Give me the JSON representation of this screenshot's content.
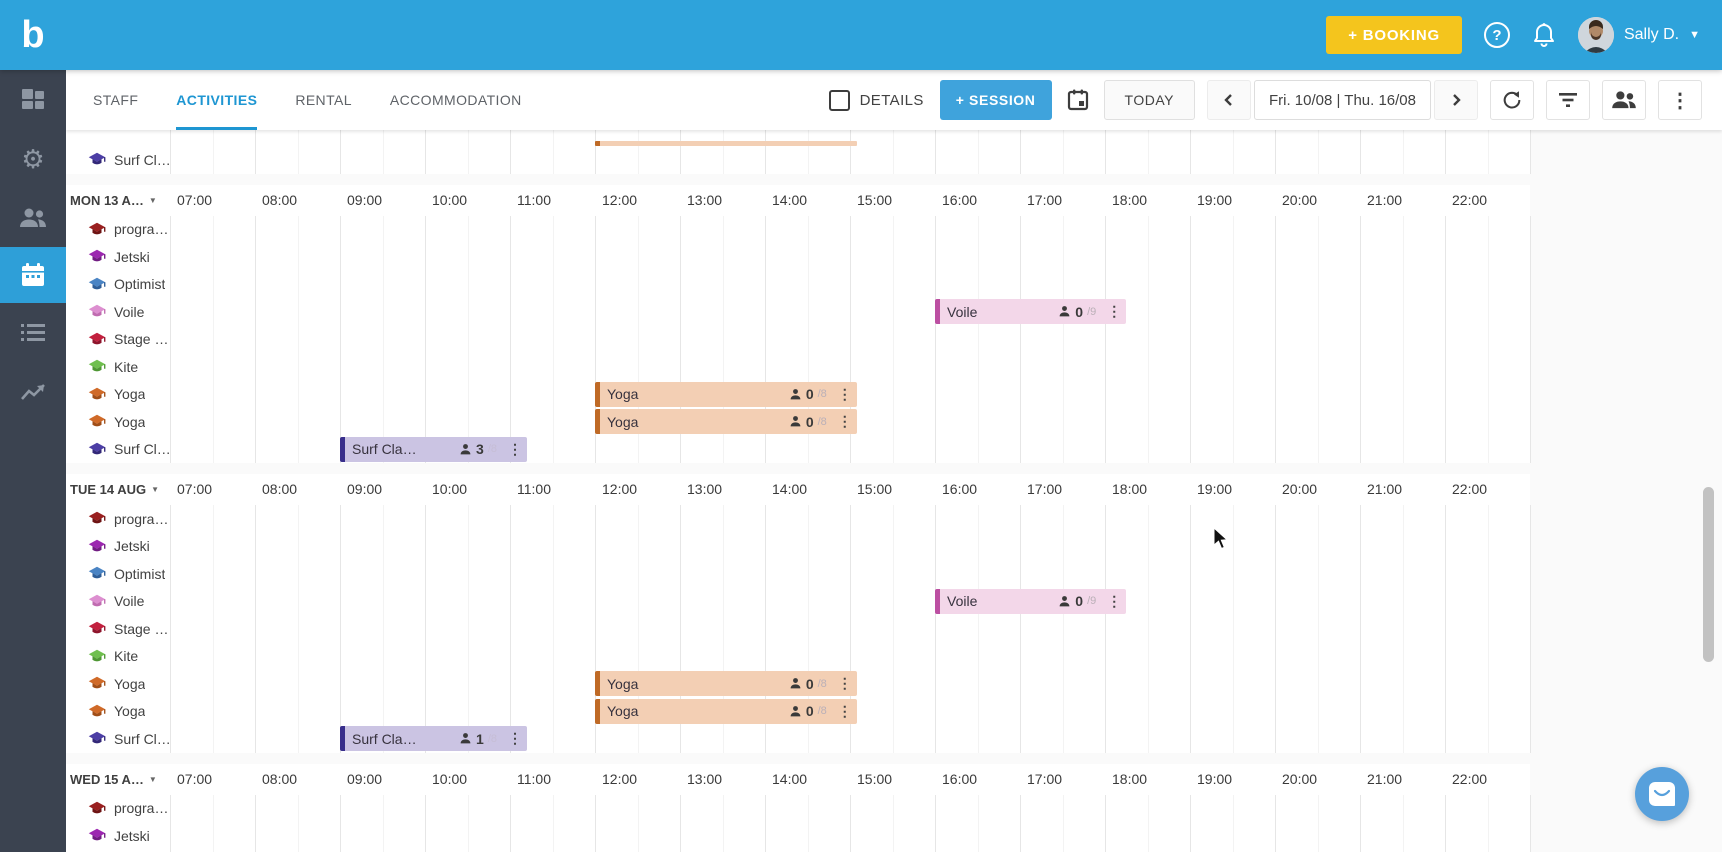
{
  "topbar": {
    "logo_text": "b",
    "booking_button": "+ BOOKING",
    "help_label": "?",
    "user_name": "Sally D."
  },
  "sidebar": {
    "items": [
      {
        "name": "dashboard",
        "active": false
      },
      {
        "name": "settings",
        "active": false
      },
      {
        "name": "customers",
        "active": false
      },
      {
        "name": "calendar",
        "active": true
      },
      {
        "name": "bookings-list",
        "active": false
      },
      {
        "name": "reports",
        "active": false
      }
    ]
  },
  "toolbar": {
    "tabs": [
      {
        "label": "STAFF",
        "active": false
      },
      {
        "label": "ACTIVITIES",
        "active": true
      },
      {
        "label": "RENTAL",
        "active": false
      },
      {
        "label": "ACCOMMODATION",
        "active": false
      }
    ],
    "details_label": "DETAILS",
    "session_button": "+ SESSION",
    "today_button": "TODAY",
    "date_range": "Fri. 10/08 | Thu. 16/08"
  },
  "colors": {
    "brand_blue": "#2EA3DB",
    "booking_yellow": "#F4C51D",
    "sidebar_bg": "#3B4350",
    "active_tab_blue": "#1E96D2",
    "page_bg": "#FAFAFA"
  },
  "calendar": {
    "hours": [
      "07:00",
      "08:00",
      "09:00",
      "10:00",
      "11:00",
      "12:00",
      "13:00",
      "14:00",
      "15:00",
      "16:00",
      "17:00",
      "18:00",
      "19:00",
      "20:00",
      "21:00",
      "22:00"
    ],
    "resources": [
      {
        "label": "progra…",
        "color": "#9A2020",
        "shade": "#6E1414"
      },
      {
        "label": "Jetski",
        "color": "#9C27B0",
        "shade": "#711C82"
      },
      {
        "label": "Optimist",
        "color": "#4A84C4",
        "shade": "#2F5E97"
      },
      {
        "label": "Voile",
        "color": "#DD8FD0",
        "shade": "#C06CB0"
      },
      {
        "label": "Stage …",
        "color": "#C2203E",
        "shade": "#8E152C"
      },
      {
        "label": "Kite",
        "color": "#6FBF4E",
        "shade": "#4E9733"
      },
      {
        "label": "Yoga",
        "color": "#D06A28",
        "shade": "#A04E18"
      },
      {
        "label": "Yoga",
        "color": "#D06A28",
        "shade": "#A04E18"
      },
      {
        "label": "Surf Cl…",
        "color": "#4C3EA5",
        "shade": "#332878"
      }
    ],
    "event_palettes": {
      "voile": {
        "bg": "#F3D7E9",
        "border": "#BC4FA2"
      },
      "yoga": {
        "bg": "#F3CFB4",
        "border": "#BF6A26"
      },
      "surf": {
        "bg": "#CBC4E3",
        "border": "#382E8B"
      }
    },
    "sections": [
      {
        "day": null,
        "partial_top": true,
        "row_indices": [
          8
        ],
        "events": [
          {
            "sliver": true,
            "start": 12,
            "end": 15.08,
            "palette": "yoga"
          }
        ]
      },
      {
        "day": "MON 13 A…",
        "partial_top": false,
        "row_indices": [
          0,
          1,
          2,
          3,
          4,
          5,
          6,
          7,
          8
        ],
        "events": [
          {
            "row": 3,
            "start": 16,
            "end": 18.25,
            "label": "Voile",
            "count": "0",
            "capacity": "/9",
            "palette": "voile"
          },
          {
            "row": 6,
            "start": 12,
            "end": 15.08,
            "label": "Yoga",
            "count": "0",
            "capacity": "/8",
            "palette": "yoga"
          },
          {
            "row": 7,
            "start": 12,
            "end": 15.08,
            "label": "Yoga",
            "count": "0",
            "capacity": "/8",
            "palette": "yoga"
          },
          {
            "row": 8,
            "start": 9,
            "end": 11.2,
            "label": "Surf Cla…",
            "count": "3",
            "capacity": "/8",
            "capacity_faint": true,
            "palette": "surf"
          }
        ]
      },
      {
        "day": "TUE 14 AUG",
        "partial_top": false,
        "row_indices": [
          0,
          1,
          2,
          3,
          4,
          5,
          6,
          7,
          8
        ],
        "events": [
          {
            "row": 3,
            "start": 16,
            "end": 18.25,
            "label": "Voile",
            "count": "0",
            "capacity": "/9",
            "palette": "voile"
          },
          {
            "row": 6,
            "start": 12,
            "end": 15.08,
            "label": "Yoga",
            "count": "0",
            "capacity": "/8",
            "palette": "yoga"
          },
          {
            "row": 7,
            "start": 12,
            "end": 15.08,
            "label": "Yoga",
            "count": "0",
            "capacity": "/8",
            "palette": "yoga"
          },
          {
            "row": 8,
            "start": 9,
            "end": 11.2,
            "label": "Surf Cla…",
            "count": "1",
            "capacity": "/8",
            "capacity_faint": true,
            "palette": "surf"
          }
        ]
      },
      {
        "day": "WED 15 A…",
        "partial_top": false,
        "row_indices": [
          0,
          1,
          2
        ],
        "events": []
      }
    ]
  }
}
